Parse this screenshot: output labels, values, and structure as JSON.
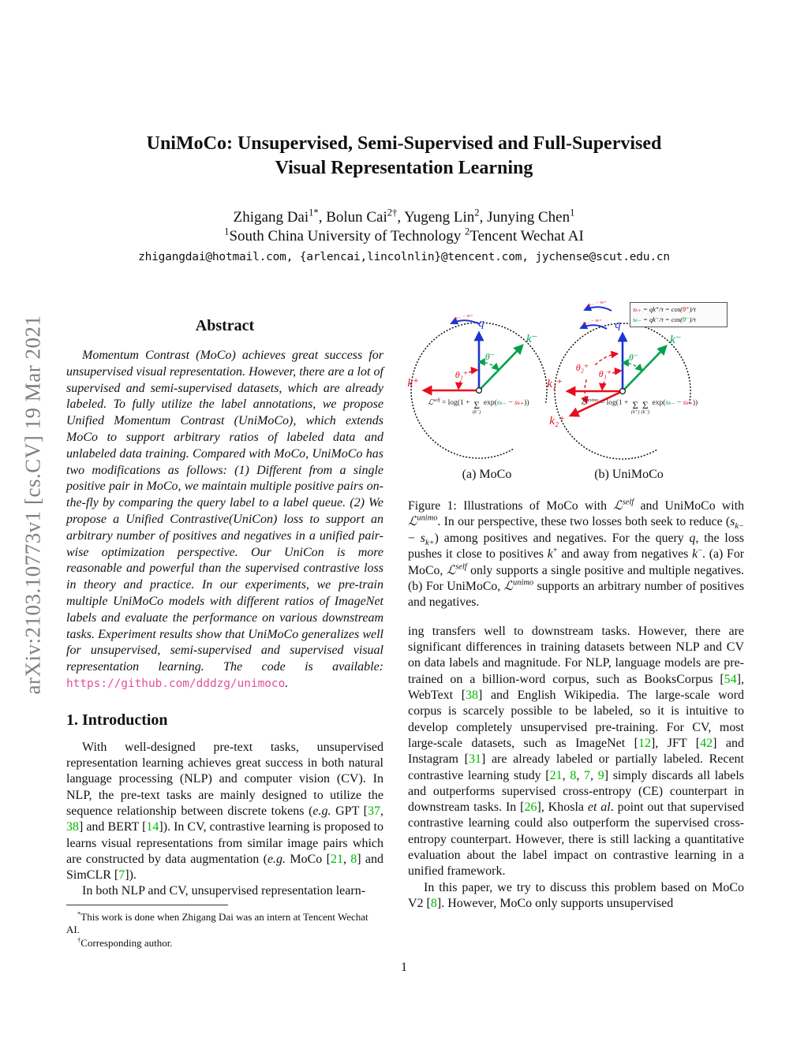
{
  "colors": {
    "citation_green": "#00b800",
    "url_pink": "#e0509e",
    "figure_blue": "#2033d0",
    "figure_green": "#00a24d",
    "figure_red": "#ea0c1e",
    "watermark_gray": "#7f7f7f"
  },
  "sidebar": {
    "text": "arXiv:2103.10773v1  [cs.CV]  19 Mar 2021"
  },
  "page": {
    "number": "1"
  },
  "header": {
    "title_line1": "UniMoCo: Unsupervised, Semi-Supervised and Full-Supervised",
    "title_line2": "Visual Representation Learning",
    "authors_segments": [
      {
        "t": "Zhigang Dai"
      },
      {
        "t": "1*",
        "s": "sup"
      },
      {
        "t": ", Bolun Cai"
      },
      {
        "t": "2†",
        "s": "sup"
      },
      {
        "t": ", Yugeng Lin"
      },
      {
        "t": "2",
        "s": "sup"
      },
      {
        "t": ", Junying Chen"
      },
      {
        "t": "1",
        "s": "sup"
      }
    ],
    "affiliation_segments": [
      {
        "t": "1",
        "s": "sup"
      },
      {
        "t": "South China University of Technology "
      },
      {
        "t": "2",
        "s": "sup"
      },
      {
        "t": "Tencent Wechat AI"
      }
    ],
    "emails": "zhigangdai@hotmail.com, {arlencai,lincolnlin}@tencent.com, jychense@scut.edu.cn"
  },
  "abstract": {
    "heading": "Abstract",
    "body_segments": [
      {
        "t": "Momentum Contrast (MoCo) achieves great success for unsupervised visual representation. However, there are a lot of supervised and semi-supervised datasets, which are already labeled. To fully utilize the label annotations, we propose Unified Momentum Contrast (UniMoCo), which extends MoCo to support arbitrary ratios of labeled data and unlabeled data training. Compared with MoCo, UniMoCo has two modifications as follows: (1) Different from a single positive pair in MoCo, we maintain multiple positive pairs on-the-fly by comparing the query label to a label queue. (2) We propose a Unified Contrastive(UniCon) loss to support an arbitrary number of positives and negatives in a unified pair-wise optimization perspective. Our UniCon is more reasonable and powerful than the supervised contrastive loss in theory and practice. In our experiments, we pre-train multiple UniMoCo models with different ratios of ImageNet labels and evaluate the performance on various downstream tasks. Experiment results show that UniMoCo generalizes well for unsupervised, semi-supervised and supervised visual representation learning. The code is available: "
      },
      {
        "t": "https://github.com/dddzg/unimoco",
        "s": "url"
      },
      {
        "t": "."
      }
    ]
  },
  "introduction": {
    "heading": "1. Introduction",
    "p1_segments": [
      {
        "t": "With well-designed pre-text tasks, unsupervised representation learning achieves great success in both natural language processing (NLP) and computer vision (CV). In NLP, the pre-text tasks are mainly designed to utilize the sequence relationship between discrete tokens ("
      },
      {
        "t": "e.g.",
        "s": "i"
      },
      {
        "t": " GPT ["
      },
      {
        "t": "37",
        "s": "c"
      },
      {
        "t": ", "
      },
      {
        "t": "38",
        "s": "c"
      },
      {
        "t": "] and BERT ["
      },
      {
        "t": "14",
        "s": "c"
      },
      {
        "t": "]). In CV, contrastive learning is proposed to learns visual representations from similar image pairs which are constructed by data augmentation ("
      },
      {
        "t": "e.g.",
        "s": "i"
      },
      {
        "t": " MoCo ["
      },
      {
        "t": "21",
        "s": "c"
      },
      {
        "t": ", "
      },
      {
        "t": "8",
        "s": "c"
      },
      {
        "t": "] and SimCLR ["
      },
      {
        "t": "7",
        "s": "c"
      },
      {
        "t": "])."
      }
    ],
    "p2_segments": [
      {
        "t": "In both NLP and CV, unsupervised representation learn-"
      }
    ]
  },
  "footnotes": {
    "note1_segments": [
      {
        "t": "*",
        "s": "sup"
      },
      {
        "t": "This work is done when Zhigang Dai was an intern at Tencent Wechat AI."
      }
    ],
    "note2_segments": [
      {
        "t": "†",
        "s": "sup"
      },
      {
        "t": "Corresponding author."
      }
    ]
  },
  "figure": {
    "legend": {
      "line1_segments": [
        {
          "t": "sₖ₊",
          "s": "ri"
        },
        {
          "t": " = qk⁺/τ = cos("
        },
        {
          "t": "θ⁺",
          "s": "ri"
        },
        {
          "t": ")/τ"
        }
      ],
      "line2_segments": [
        {
          "t": "sₖ₋",
          "s": "gi"
        },
        {
          "t": " = qk⁻/τ = cos("
        },
        {
          "t": "θ⁻",
          "s": "gi"
        },
        {
          "t": ")/τ"
        }
      ]
    },
    "panel_a": {
      "caption": "(a) MoCo",
      "q_label": "q",
      "k_neg_label": "k⁻",
      "k_pos_label": "k⁺",
      "theta_neg_label": "θ⁻",
      "theta_pos1_label": "θ₁⁺",
      "score_note": "sₖ₋ − sₖ₊",
      "formula_segments": [
        {
          "t": "ℒ",
          "s": "m"
        },
        {
          "t": "self",
          "s": "supi"
        },
        {
          "t": " = log(1 + "
        },
        {
          "t": "(k⁻)",
          "s": "sum"
        },
        {
          "t": " exp("
        },
        {
          "t": "sₖ₋",
          "s": "gi"
        },
        {
          "t": " − "
        },
        {
          "t": "sₖ₊",
          "s": "ri"
        },
        {
          "t": "))"
        }
      ]
    },
    "panel_b": {
      "caption": "(b) UniMoCo",
      "q_label": "q",
      "k_neg_label": "k⁻",
      "k_pos1_label": "k₁⁺",
      "k_pos2_label": "k₂⁺",
      "theta_neg_label": "θ⁻",
      "theta_pos1_label": "θ₁⁺",
      "theta_pos2_label": "θ₂⁺",
      "score_note1": "sₖ₋ − sₖ₊",
      "score_note2": "sₖ₋ − sₖ₊",
      "formula_segments": [
        {
          "t": "ℒ",
          "s": "m"
        },
        {
          "t": "unimo",
          "s": "supi"
        },
        {
          "t": " = log(1 + "
        },
        {
          "t": "(k⁺)",
          "s": "sum"
        },
        {
          "t": "(k⁻)",
          "s": "sum"
        },
        {
          "t": " exp("
        },
        {
          "t": "sₖ₋",
          "s": "gi"
        },
        {
          "t": " − "
        },
        {
          "t": "sₖ₊",
          "s": "ri"
        },
        {
          "t": "))"
        }
      ]
    },
    "caption_segments": [
      {
        "t": "Figure 1: Illustrations of MoCo with "
      },
      {
        "t": "ℒ",
        "s": "m"
      },
      {
        "t": "self",
        "s": "supi"
      },
      {
        "t": " and UniMoCo with "
      },
      {
        "t": "ℒ",
        "s": "m"
      },
      {
        "t": "unimo",
        "s": "supi"
      },
      {
        "t": ". In our perspective, these two losses both seek to reduce ("
      },
      {
        "t": "s",
        "s": "i"
      },
      {
        "t": "k−",
        "s": "subi"
      },
      {
        "t": " − "
      },
      {
        "t": "s",
        "s": "i"
      },
      {
        "t": "k+",
        "s": "subi"
      },
      {
        "t": ") among positives and negatives. For the query "
      },
      {
        "t": "q",
        "s": "i"
      },
      {
        "t": ", the loss pushes it close to positives "
      },
      {
        "t": "k",
        "s": "i"
      },
      {
        "t": "+",
        "s": "sup"
      },
      {
        "t": " and away from negatives "
      },
      {
        "t": "k",
        "s": "i"
      },
      {
        "t": "−",
        "s": "sup"
      },
      {
        "t": ". (a) For MoCo, "
      },
      {
        "t": "ℒ",
        "s": "m"
      },
      {
        "t": "self",
        "s": "supi"
      },
      {
        "t": " only supports a single positive and multiple negatives. (b) For UniMoCo, "
      },
      {
        "t": "ℒ",
        "s": "m"
      },
      {
        "t": "unimo",
        "s": "supi"
      },
      {
        "t": " supports an arbitrary number of positives and negatives."
      }
    ]
  },
  "right_column": {
    "p1_segments": [
      {
        "t": "ing transfers well to downstream tasks. However, there are significant differences in training datasets between NLP and CV on data labels and magnitude. For NLP, language models are pre-trained on a billion-word corpus, such as BooksCorpus ["
      },
      {
        "t": "54",
        "s": "c"
      },
      {
        "t": "], WebText ["
      },
      {
        "t": "38",
        "s": "c"
      },
      {
        "t": "] and English Wikipedia. The large-scale word corpus is scarcely possible to be labeled, so it is intuitive to develop completely unsupervised pre-training. For CV, most large-scale datasets, such as ImageNet ["
      },
      {
        "t": "12",
        "s": "c"
      },
      {
        "t": "], JFT ["
      },
      {
        "t": "42",
        "s": "c"
      },
      {
        "t": "] and Instagram ["
      },
      {
        "t": "31",
        "s": "c"
      },
      {
        "t": "] are already labeled or partially labeled. Recent contrastive learning study ["
      },
      {
        "t": "21",
        "s": "c"
      },
      {
        "t": ", "
      },
      {
        "t": "8",
        "s": "c"
      },
      {
        "t": ", "
      },
      {
        "t": "7",
        "s": "c"
      },
      {
        "t": ", "
      },
      {
        "t": "9",
        "s": "c"
      },
      {
        "t": "] simply discards all labels and outperforms supervised cross-entropy (CE) counterpart in downstream tasks. In ["
      },
      {
        "t": "26",
        "s": "c"
      },
      {
        "t": "], Khosla "
      },
      {
        "t": "et al",
        "s": "i"
      },
      {
        "t": ". point out that supervised contrastive learning could also outperform the supervised cross-entropy counterpart. However, there is still lacking a quantitative evaluation about the label impact on contrastive learning in a unified framework."
      }
    ],
    "p2_segments": [
      {
        "t": "In this paper, we try to discuss this problem based on MoCo V2 ["
      },
      {
        "t": "8",
        "s": "c"
      },
      {
        "t": "]. However, MoCo only supports unsupervised"
      }
    ]
  }
}
